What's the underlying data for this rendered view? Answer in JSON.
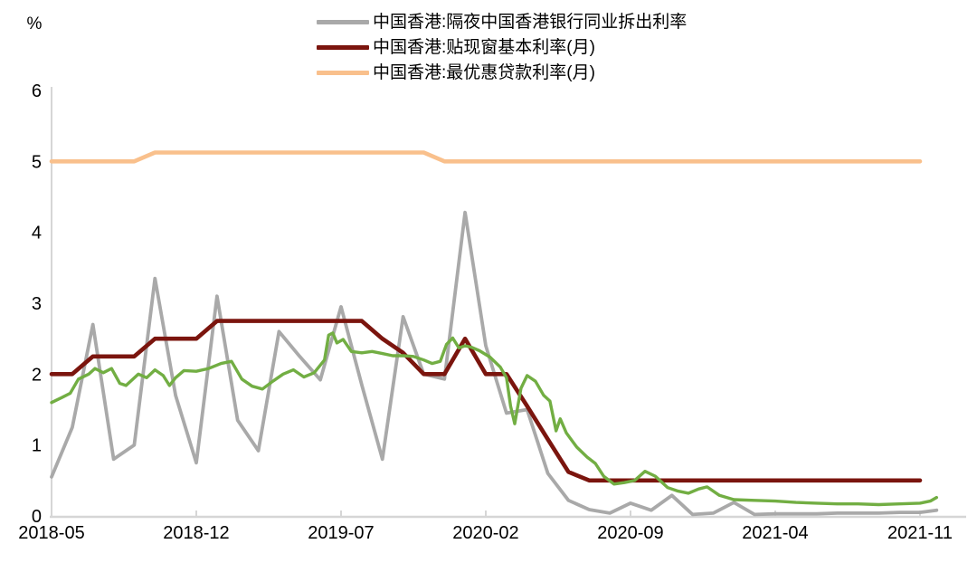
{
  "chart_data": {
    "type": "line",
    "title": "",
    "ylabel": "%",
    "xlabel": "",
    "x_unit": "months since 2018-05",
    "xlim_months": [
      -0.3,
      44.2
    ],
    "ylim": [
      0,
      6
    ],
    "y_ticks": [
      0,
      1,
      2,
      3,
      4,
      5,
      6
    ],
    "x_tick_months": [
      0,
      7,
      14,
      21,
      28,
      35,
      42
    ],
    "x_tick_labels": [
      "2018-05",
      "2018-12",
      "2019-07",
      "2020-02",
      "2020-09",
      "2021-04",
      "2021-11"
    ],
    "grid": false,
    "legend_position": "top-center",
    "axis_color": "#d6d6d6",
    "text_color": "#000000",
    "series": [
      {
        "name": "中国香港:隔夜中国香港银行同业拆出利率",
        "color": "#a9a9a9",
        "width": 3.8,
        "in_legend": true,
        "points": [
          [
            0,
            0.55
          ],
          [
            1,
            1.25
          ],
          [
            2,
            2.7
          ],
          [
            3,
            0.8
          ],
          [
            4,
            1.0
          ],
          [
            5,
            3.35
          ],
          [
            6,
            1.7
          ],
          [
            7,
            0.75
          ],
          [
            8,
            3.1
          ],
          [
            9,
            1.35
          ],
          [
            10,
            0.92
          ],
          [
            11,
            2.6
          ],
          [
            12,
            2.25
          ],
          [
            13,
            1.92
          ],
          [
            14,
            2.95
          ],
          [
            15,
            1.85
          ],
          [
            16,
            0.8
          ],
          [
            17,
            2.81
          ],
          [
            18,
            2.0
          ],
          [
            19,
            1.93
          ],
          [
            20,
            4.28
          ],
          [
            21,
            2.4
          ],
          [
            22,
            1.45
          ],
          [
            23,
            1.5
          ],
          [
            24,
            0.6
          ],
          [
            25,
            0.22
          ],
          [
            26,
            0.09
          ],
          [
            27,
            0.04
          ],
          [
            28,
            0.18
          ],
          [
            29,
            0.08
          ],
          [
            30,
            0.29
          ],
          [
            31,
            0.02
          ],
          [
            32,
            0.04
          ],
          [
            33,
            0.19
          ],
          [
            34,
            0.02
          ],
          [
            35,
            0.03
          ],
          [
            36,
            0.03
          ],
          [
            37,
            0.03
          ],
          [
            38,
            0.04
          ],
          [
            39,
            0.04
          ],
          [
            40,
            0.04
          ],
          [
            41,
            0.05
          ],
          [
            42,
            0.05
          ],
          [
            42.8,
            0.08
          ]
        ]
      },
      {
        "name": "中国香港:贴现窗基本利率(月)",
        "color": "#7b150e",
        "width": 4.6,
        "in_legend": true,
        "points": [
          [
            0,
            2.0
          ],
          [
            1,
            2.0
          ],
          [
            2,
            2.25
          ],
          [
            4,
            2.25
          ],
          [
            5,
            2.5
          ],
          [
            7,
            2.5
          ],
          [
            8,
            2.75
          ],
          [
            15,
            2.75
          ],
          [
            16,
            2.5
          ],
          [
            17,
            2.3
          ],
          [
            18,
            2.0
          ],
          [
            19,
            2.0
          ],
          [
            20,
            2.5
          ],
          [
            21,
            2.0
          ],
          [
            22,
            2.0
          ],
          [
            23,
            1.55
          ],
          [
            24,
            1.08
          ],
          [
            25,
            0.62
          ],
          [
            26,
            0.5
          ],
          [
            42,
            0.5
          ]
        ]
      },
      {
        "name": "中国香港:最优惠贷款利率(月)",
        "color": "#f9c08c",
        "width": 4.6,
        "in_legend": true,
        "points": [
          [
            0,
            5.0
          ],
          [
            4,
            5.0
          ],
          [
            5,
            5.125
          ],
          [
            18,
            5.125
          ],
          [
            19,
            5.0
          ],
          [
            42,
            5.0
          ]
        ]
      },
      {
        "name": "unlabeled-green-series",
        "color": "#72ae43",
        "width": 3.4,
        "in_legend": false,
        "points": [
          [
            0,
            1.6
          ],
          [
            0.5,
            1.67
          ],
          [
            0.9,
            1.73
          ],
          [
            1.3,
            1.93
          ],
          [
            1.8,
            2.0
          ],
          [
            2.1,
            2.08
          ],
          [
            2.5,
            2.02
          ],
          [
            2.9,
            2.08
          ],
          [
            3.3,
            1.87
          ],
          [
            3.6,
            1.84
          ],
          [
            3.9,
            1.92
          ],
          [
            4.2,
            2.0
          ],
          [
            4.6,
            1.95
          ],
          [
            5.0,
            2.06
          ],
          [
            5.4,
            1.98
          ],
          [
            5.7,
            1.84
          ],
          [
            6.0,
            1.95
          ],
          [
            6.4,
            2.05
          ],
          [
            7.0,
            2.04
          ],
          [
            7.6,
            2.08
          ],
          [
            8.2,
            2.15
          ],
          [
            8.7,
            2.18
          ],
          [
            9.2,
            1.93
          ],
          [
            9.7,
            1.83
          ],
          [
            10.2,
            1.79
          ],
          [
            10.7,
            1.9
          ],
          [
            11.2,
            2.0
          ],
          [
            11.7,
            2.06
          ],
          [
            12.2,
            1.96
          ],
          [
            12.7,
            2.02
          ],
          [
            13.2,
            2.2
          ],
          [
            13.4,
            2.55
          ],
          [
            13.6,
            2.58
          ],
          [
            13.8,
            2.44
          ],
          [
            14.1,
            2.49
          ],
          [
            14.5,
            2.32
          ],
          [
            15.0,
            2.3
          ],
          [
            15.5,
            2.32
          ],
          [
            16.0,
            2.29
          ],
          [
            16.5,
            2.26
          ],
          [
            17.0,
            2.26
          ],
          [
            17.5,
            2.25
          ],
          [
            18.0,
            2.2
          ],
          [
            18.4,
            2.15
          ],
          [
            18.8,
            2.18
          ],
          [
            19.1,
            2.42
          ],
          [
            19.4,
            2.51
          ],
          [
            19.7,
            2.37
          ],
          [
            20.0,
            2.4
          ],
          [
            20.3,
            2.38
          ],
          [
            20.7,
            2.33
          ],
          [
            21.2,
            2.24
          ],
          [
            21.7,
            2.1
          ],
          [
            22.0,
            1.95
          ],
          [
            22.2,
            1.55
          ],
          [
            22.4,
            1.3
          ],
          [
            22.7,
            1.8
          ],
          [
            23.0,
            1.98
          ],
          [
            23.4,
            1.9
          ],
          [
            23.8,
            1.7
          ],
          [
            24.1,
            1.62
          ],
          [
            24.4,
            1.2
          ],
          [
            24.6,
            1.37
          ],
          [
            24.9,
            1.17
          ],
          [
            25.4,
            0.97
          ],
          [
            25.9,
            0.83
          ],
          [
            26.3,
            0.74
          ],
          [
            26.7,
            0.56
          ],
          [
            27.2,
            0.45
          ],
          [
            27.7,
            0.47
          ],
          [
            28.2,
            0.5
          ],
          [
            28.7,
            0.63
          ],
          [
            29.2,
            0.56
          ],
          [
            29.8,
            0.4
          ],
          [
            30.3,
            0.35
          ],
          [
            30.8,
            0.32
          ],
          [
            31.3,
            0.38
          ],
          [
            31.7,
            0.41
          ],
          [
            32.3,
            0.29
          ],
          [
            33.0,
            0.23
          ],
          [
            34.0,
            0.22
          ],
          [
            35.0,
            0.21
          ],
          [
            36.0,
            0.19
          ],
          [
            37.0,
            0.18
          ],
          [
            38.0,
            0.17
          ],
          [
            39.0,
            0.17
          ],
          [
            40.0,
            0.16
          ],
          [
            41.0,
            0.17
          ],
          [
            42.0,
            0.18
          ],
          [
            42.5,
            0.21
          ],
          [
            42.8,
            0.26
          ]
        ]
      }
    ]
  },
  "legend": {
    "items": [
      {
        "label": "中国香港:隔夜中国香港银行同业拆出利率"
      },
      {
        "label": "中国香港:贴现窗基本利率(月)"
      },
      {
        "label": "中国香港:最优惠贷款利率(月)"
      }
    ]
  }
}
